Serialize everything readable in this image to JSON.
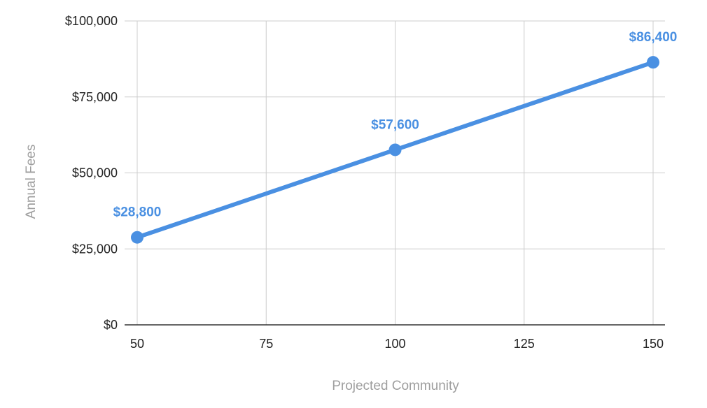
{
  "chart_data": {
    "type": "line",
    "title": "",
    "xlabel": "Projected Community",
    "ylabel": "Annual Fees",
    "x": [
      50,
      100,
      150
    ],
    "series": [
      {
        "values": [
          28800,
          57600,
          86400
        ],
        "labels": [
          "$28,800",
          "$57,600",
          "$86,400"
        ]
      }
    ],
    "xlim": [
      50,
      150
    ],
    "ylim": [
      0,
      100000
    ],
    "x_ticks": [
      50,
      75,
      100,
      125,
      150
    ],
    "x_tick_labels": [
      "50",
      "75",
      "100",
      "125",
      "150"
    ],
    "y_ticks": [
      0,
      25000,
      50000,
      75000,
      100000
    ],
    "y_tick_labels": [
      "$0",
      "$25,000",
      "$50,000",
      "$75,000",
      "$100,000"
    ],
    "grid": true,
    "legend": "none"
  },
  "colors": {
    "series": "#4a90e2",
    "grid": "#cccccc",
    "axis": "#333333",
    "tick_text": "#222222",
    "axis_title": "#9e9e9e"
  }
}
